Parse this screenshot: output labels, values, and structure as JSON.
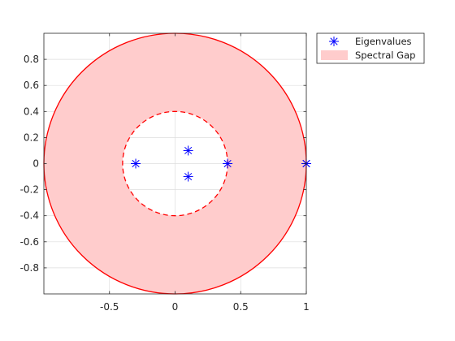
{
  "chart_data": {
    "type": "scatter",
    "title": "",
    "xlabel": "",
    "ylabel": "",
    "xlim": [
      -1,
      1
    ],
    "ylim": [
      -1,
      1
    ],
    "grid": true,
    "axis_equal": true,
    "xticks": [
      -0.5,
      0,
      0.5,
      1
    ],
    "xtick_labels": [
      "-0.5",
      "0",
      "0.5",
      "1"
    ],
    "yticks": [
      -0.8,
      -0.6,
      -0.4,
      -0.2,
      0,
      0.2,
      0.4,
      0.6,
      0.8
    ],
    "ytick_labels": [
      "-0.8",
      "-0.6",
      "-0.4",
      "-0.2",
      "0",
      "0.2",
      "0.4",
      "0.6",
      "0.8"
    ],
    "legend": {
      "placement": "outside-top-right",
      "entries": [
        {
          "label": "Eigenvalues",
          "marker": "asterisk",
          "color": "#0000ff"
        },
        {
          "label": "Spectral Gap",
          "marker": "patch",
          "color": "#ffcccc"
        }
      ]
    },
    "series": [
      {
        "name": "Eigenvalues",
        "marker": "asterisk",
        "color": "#0000ff",
        "points": [
          {
            "x": 1.0,
            "y": 0.0
          },
          {
            "x": 1.0,
            "y": 0.0
          },
          {
            "x": 0.4,
            "y": 0.0
          },
          {
            "x": 0.1,
            "y": 0.1
          },
          {
            "x": 0.1,
            "y": -0.1
          },
          {
            "x": -0.3,
            "y": 0.0
          }
        ]
      },
      {
        "name": "Spectral Gap",
        "type": "annulus",
        "fill_color": "#ffcccc",
        "edge_color": "#ff0000",
        "center": [
          0,
          0
        ],
        "outer_radius": 1.0,
        "inner_radius": 0.4,
        "outer_edge_style": "solid",
        "inner_edge_style": "dashed"
      }
    ]
  }
}
